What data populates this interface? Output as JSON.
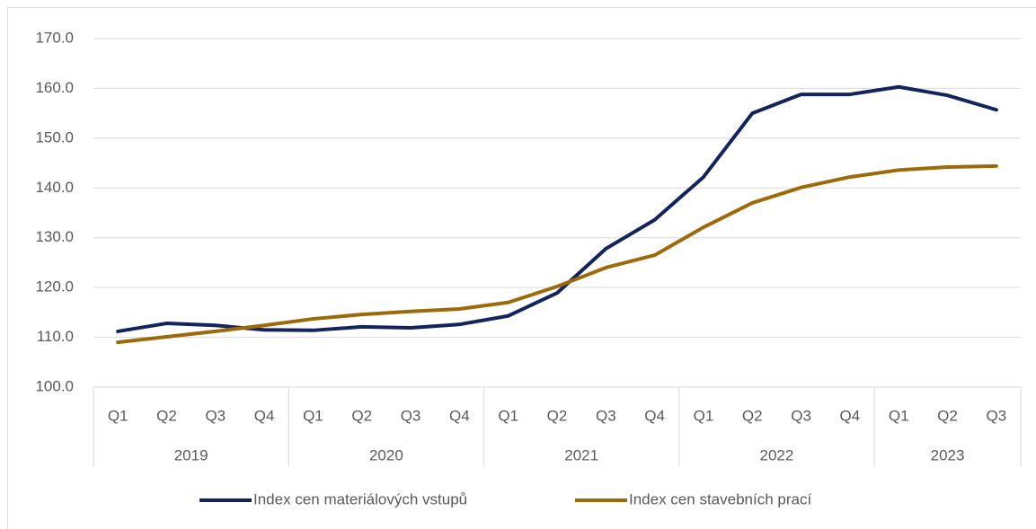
{
  "chart_data": {
    "type": "line",
    "category_groups": [
      {
        "name": "2019",
        "categories": [
          "Q1",
          "Q2",
          "Q3",
          "Q4"
        ]
      },
      {
        "name": "2020",
        "categories": [
          "Q1",
          "Q2",
          "Q3",
          "Q4"
        ]
      },
      {
        "name": "2021",
        "categories": [
          "Q1",
          "Q2",
          "Q3",
          "Q4"
        ]
      },
      {
        "name": "2022",
        "categories": [
          "Q1",
          "Q2",
          "Q3",
          "Q4"
        ]
      },
      {
        "name": "2023",
        "categories": [
          "Q1",
          "Q2",
          "Q3"
        ]
      }
    ],
    "series": [
      {
        "name": "Index cen materiálových vstupů",
        "color": "#13235b",
        "values": [
          111.2,
          112.8,
          112.4,
          111.5,
          111.4,
          112.1,
          111.9,
          112.6,
          114.3,
          118.9,
          127.8,
          133.6,
          142.2,
          155.0,
          158.8,
          158.8,
          160.3,
          158.6,
          155.7
        ]
      },
      {
        "name": "Index cen stavebních prací",
        "color": "#9c6a0a",
        "values": [
          109.0,
          110.1,
          111.2,
          112.4,
          113.7,
          114.6,
          115.2,
          115.7,
          117.0,
          120.2,
          124.0,
          126.5,
          132.1,
          137.0,
          140.1,
          142.2,
          143.6,
          144.2,
          144.4
        ]
      }
    ],
    "ylim": [
      100,
      170
    ],
    "yticks": [
      {
        "value": 100,
        "label": "100.0"
      },
      {
        "value": 110,
        "label": "110.0"
      },
      {
        "value": 120,
        "label": "120.0"
      },
      {
        "value": 130,
        "label": "130.0"
      },
      {
        "value": 140,
        "label": "140.0"
      },
      {
        "value": 150,
        "label": "150.0"
      },
      {
        "value": 160,
        "label": "160.0"
      },
      {
        "value": 170,
        "label": "170.0"
      }
    ],
    "grid": true,
    "legend": "bottom"
  }
}
